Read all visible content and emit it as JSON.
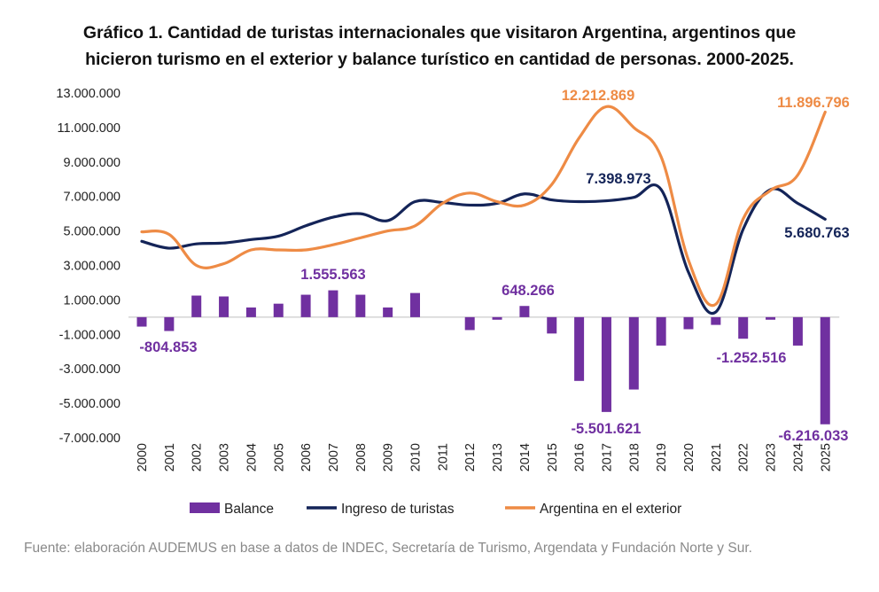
{
  "title_lines": [
    "Gráfico 1. Cantidad de turistas internacionales que visitaron Argentina, argentinos que",
    "hicieron turismo en el exterior y balance turístico en cantidad de personas. 2000-2025."
  ],
  "source": "Fuente: elaboración AUDEMUS en base a datos de INDEC, Secretaría de Turismo, Argendata y Fundación Norte y Sur.",
  "colors": {
    "balance": "#7030a0",
    "ingreso": "#142458",
    "exterior": "#ee8b45",
    "axis_text": "#222222",
    "source": "#8a8a8a"
  },
  "chart_data": {
    "type": "bar+line",
    "categories": [
      "2000",
      "2001",
      "2002",
      "2003",
      "2004",
      "2005",
      "2006",
      "2007",
      "2008",
      "2009",
      "2010",
      "2011",
      "2012",
      "2013",
      "2014",
      "2015",
      "2016",
      "2017",
      "2018",
      "2019",
      "2020",
      "2021",
      "2022",
      "2023",
      "2024",
      "2025"
    ],
    "ylim": [
      -7000000,
      13000000
    ],
    "yticks": [
      13000000,
      11000000,
      9000000,
      7000000,
      5000000,
      3000000,
      1000000,
      -1000000,
      -3000000,
      -5000000,
      -7000000
    ],
    "ytick_labels": [
      "13.000.000",
      "11.000.000",
      "9.000.000",
      "7.000.000",
      "5.000.000",
      "3.000.000",
      "1.000.000",
      "-1.000.000",
      "-3.000.000",
      "-5.000.000",
      "-7.000.000"
    ],
    "series": [
      {
        "name": "Balance",
        "type": "bar",
        "values": [
          -550000,
          -804853,
          1250000,
          1200000,
          560000,
          780000,
          1300000,
          1555563,
          1300000,
          560000,
          1400000,
          0,
          -750000,
          -150000,
          648266,
          -950000,
          -3700000,
          -5501621,
          -4200000,
          -1650000,
          -700000,
          -450000,
          -1252516,
          -150000,
          -1650000,
          -6216033
        ]
      },
      {
        "name": "Ingreso de turistas",
        "type": "line",
        "values": [
          4400000,
          4000000,
          4250000,
          4300000,
          4500000,
          4700000,
          5300000,
          5800000,
          6000000,
          5600000,
          6700000,
          6650000,
          6500000,
          6600000,
          7150000,
          6800000,
          6700000,
          6750000,
          6950000,
          7398973,
          2600000,
          300000,
          5100000,
          7400000,
          6600000,
          5680763
        ]
      },
      {
        "name": "Argentina en el exterior",
        "type": "line",
        "values": [
          4950000,
          4800000,
          3000000,
          3100000,
          3900000,
          3900000,
          3900000,
          4200000,
          4600000,
          5000000,
          5300000,
          6600000,
          7200000,
          6700000,
          6500000,
          7700000,
          10400000,
          12212869,
          11000000,
          9300000,
          3300000,
          750000,
          5700000,
          7350000,
          8250000,
          11896796
        ]
      }
    ],
    "annotations": [
      {
        "series": "Balance",
        "category": "2001",
        "text": "-804.853"
      },
      {
        "series": "Balance",
        "category": "2007",
        "text": "1.555.563"
      },
      {
        "series": "Balance",
        "category": "2014",
        "text": "648.266"
      },
      {
        "series": "Balance",
        "category": "2017",
        "text": "-5.501.621"
      },
      {
        "series": "Balance",
        "category": "2022",
        "text": "-1.252.516"
      },
      {
        "series": "Balance",
        "category": "2025",
        "text": "-6.216.033"
      },
      {
        "series": "Ingreso de turistas",
        "category": "2019",
        "text": "7.398.973"
      },
      {
        "series": "Ingreso de turistas",
        "category": "2025",
        "text": "5.680.763"
      },
      {
        "series": "Argentina en el exterior",
        "category": "2017",
        "text": "12.212.869"
      },
      {
        "series": "Argentina en el exterior",
        "category": "2025",
        "text": "11.896.796"
      }
    ],
    "legend": {
      "placement": "bottom",
      "items": [
        "Balance",
        "Ingreso de turistas",
        "Argentina en el exterior"
      ]
    },
    "grid": false
  }
}
